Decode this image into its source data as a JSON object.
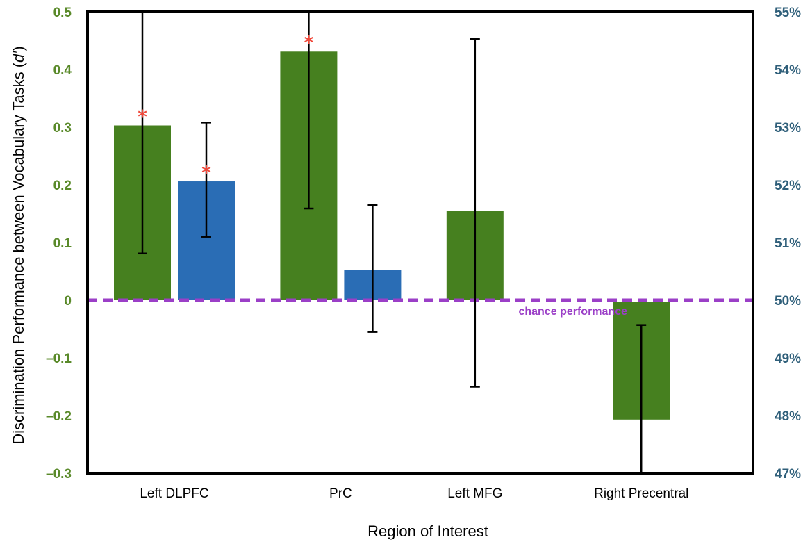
{
  "chart_data": {
    "type": "bar",
    "categories": [
      "Left DLPFC",
      "PrC",
      "Left MFG",
      "Right Precentral"
    ],
    "xlabel": "Region of Interest",
    "ylabel": "Discrimination Performance between Vocabulary Tasks (",
    "ylabel_italic": "d′",
    "ylabel_end": ")",
    "ylim": [
      -0.3,
      0.5
    ],
    "yticks": [
      "0.5",
      "0.4",
      "0.3",
      "0.2",
      "0.1",
      "0",
      "–0.1",
      "–0.2",
      "–0.3"
    ],
    "ytick_values": [
      0.5,
      0.4,
      0.3,
      0.2,
      0.1,
      0,
      -0.1,
      -0.2,
      -0.3
    ],
    "yticks_right": [
      "55%",
      "54%",
      "53%",
      "52%",
      "51%",
      "50%",
      "49%",
      "48%",
      "47%"
    ],
    "chance_label": "chance performance",
    "chance_value": 0,
    "series": [
      {
        "color": "#46801f",
        "values": [
          0.303,
          0.431,
          0.155,
          -0.207
        ],
        "err_low": [
          0.081,
          0.159,
          -0.15,
          -0.3
        ],
        "err_high": [
          0.5,
          0.5,
          0.453,
          -0.043
        ],
        "significant": [
          true,
          true,
          false,
          false
        ],
        "star_at": [
          0.325,
          0.453,
          null,
          null
        ]
      },
      {
        "color": "#2a6db5",
        "values": [
          0.206,
          0.053,
          null,
          null
        ],
        "err_low": [
          0.11,
          -0.055,
          null,
          null
        ],
        "err_high": [
          0.308,
          0.165,
          null,
          null
        ],
        "significant": [
          true,
          false,
          false,
          false
        ],
        "star_at": [
          0.228,
          null,
          null,
          null
        ]
      }
    ],
    "star_symbol": "*",
    "colors": {
      "left_axis": "#5a8a2a",
      "right_axis": "#2f5f7a",
      "chance_line": "#9b3fc7",
      "star": "#f0483a"
    }
  }
}
